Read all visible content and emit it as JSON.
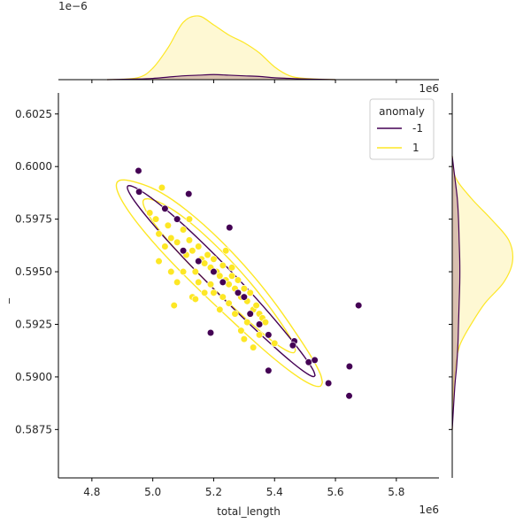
{
  "chart_data": {
    "type": "scatter",
    "subtype": "jointplot",
    "title": "",
    "xlabel": "total_length",
    "ylabel": "_",
    "x_offset_text": "1e6",
    "y_offset_text": "1e6",
    "top_marginal_offset_text": "1e−6",
    "xlim": [
      4.69,
      5.94
    ],
    "ylim": [
      0.5852,
      0.6035
    ],
    "x_ticks": [
      4.8,
      5.0,
      5.2,
      5.4,
      5.6,
      5.8
    ],
    "x_tick_labels": [
      "4.8",
      "5.0",
      "5.2",
      "5.4",
      "5.6",
      "5.8"
    ],
    "y_ticks": [
      0.5875,
      0.59,
      0.5925,
      0.595,
      0.5975,
      0.6,
      0.6025
    ],
    "y_tick_labels": [
      "0.5875",
      "0.5900",
      "0.5925",
      "0.5950",
      "0.5975",
      "0.6000",
      "0.6025"
    ],
    "grid": false,
    "legend": {
      "title": "anomaly",
      "placement": "top-right",
      "entries": [
        {
          "label": "-1",
          "color": "#440154"
        },
        {
          "label": "1",
          "color": "#fde725"
        }
      ]
    },
    "colors": {
      "anomaly_neg": "#440154",
      "anomaly_pos": "#fde725",
      "fill_neg": "#c9a8a0",
      "fill_pos": "#fdf5c0"
    },
    "series": [
      {
        "name": "-1",
        "points": [
          [
            4.953,
            0.5998
          ],
          [
            4.955,
            0.5988
          ],
          [
            5.118,
            0.5987
          ],
          [
            5.252,
            0.5971
          ],
          [
            5.04,
            0.598
          ],
          [
            5.08,
            0.5975
          ],
          [
            5.1,
            0.596
          ],
          [
            5.15,
            0.5955
          ],
          [
            5.2,
            0.595
          ],
          [
            5.23,
            0.5945
          ],
          [
            5.28,
            0.594
          ],
          [
            5.3,
            0.5938
          ],
          [
            5.32,
            0.593
          ],
          [
            5.35,
            0.5925
          ],
          [
            5.38,
            0.592
          ],
          [
            5.19,
            0.5921
          ],
          [
            5.465,
            0.5917
          ],
          [
            5.46,
            0.5915
          ],
          [
            5.38,
            0.5903
          ],
          [
            5.512,
            0.5907
          ],
          [
            5.532,
            0.5908
          ],
          [
            5.577,
            0.5897
          ],
          [
            5.646,
            0.5905
          ],
          [
            5.645,
            0.5891
          ],
          [
            5.676,
            0.5934
          ]
        ]
      },
      {
        "name": "1",
        "points": [
          [
            5.03,
            0.599
          ],
          [
            4.99,
            0.5978
          ],
          [
            5.01,
            0.5975
          ],
          [
            5.05,
            0.5972
          ],
          [
            5.02,
            0.5968
          ],
          [
            5.06,
            0.5966
          ],
          [
            5.08,
            0.5964
          ],
          [
            5.04,
            0.5962
          ],
          [
            5.1,
            0.597
          ],
          [
            5.12,
            0.5965
          ],
          [
            5.13,
            0.596
          ],
          [
            5.11,
            0.5958
          ],
          [
            5.15,
            0.5962
          ],
          [
            5.16,
            0.5956
          ],
          [
            5.17,
            0.5954
          ],
          [
            5.14,
            0.595
          ],
          [
            5.18,
            0.5958
          ],
          [
            5.19,
            0.5952
          ],
          [
            5.2,
            0.5956
          ],
          [
            5.21,
            0.595
          ],
          [
            5.22,
            0.5948
          ],
          [
            5.23,
            0.5953
          ],
          [
            5.24,
            0.5946
          ],
          [
            5.25,
            0.5944
          ],
          [
            5.26,
            0.5948
          ],
          [
            5.27,
            0.5942
          ],
          [
            5.28,
            0.5946
          ],
          [
            5.29,
            0.5938
          ],
          [
            5.3,
            0.5942
          ],
          [
            5.31,
            0.5936
          ],
          [
            5.32,
            0.594
          ],
          [
            5.33,
            0.5932
          ],
          [
            5.34,
            0.5934
          ],
          [
            5.35,
            0.593
          ],
          [
            5.36,
            0.5928
          ],
          [
            5.37,
            0.5926
          ],
          [
            5.25,
            0.5935
          ],
          [
            5.2,
            0.594
          ],
          [
            5.15,
            0.5945
          ],
          [
            5.1,
            0.595
          ],
          [
            5.07,
            0.5934
          ],
          [
            5.13,
            0.5938
          ],
          [
            5.14,
            0.5937
          ],
          [
            5.22,
            0.5932
          ],
          [
            5.27,
            0.593
          ],
          [
            5.29,
            0.5922
          ],
          [
            5.3,
            0.5918
          ],
          [
            5.35,
            0.592
          ],
          [
            5.33,
            0.5914
          ],
          [
            5.4,
            0.5916
          ],
          [
            5.02,
            0.5955
          ],
          [
            5.06,
            0.595
          ],
          [
            5.17,
            0.594
          ],
          [
            5.19,
            0.5944
          ],
          [
            5.23,
            0.5938
          ],
          [
            5.26,
            0.5952
          ],
          [
            5.12,
            0.5975
          ],
          [
            5.08,
            0.5945
          ],
          [
            5.31,
            0.5926
          ],
          [
            5.24,
            0.596
          ]
        ]
      }
    ],
    "marginal_x_density": {
      "x": [
        4.85,
        4.95,
        5.0,
        5.05,
        5.1,
        5.15,
        5.2,
        5.25,
        5.3,
        5.35,
        5.4,
        5.45,
        5.5,
        5.6
      ],
      "series_1": [
        0.0,
        0.03,
        0.18,
        0.5,
        0.9,
        1.0,
        0.86,
        0.7,
        0.58,
        0.42,
        0.2,
        0.06,
        0.02,
        0.0
      ],
      "series_neg1": [
        0.0,
        0.01,
        0.02,
        0.04,
        0.06,
        0.07,
        0.08,
        0.07,
        0.06,
        0.05,
        0.03,
        0.02,
        0.01,
        0.0
      ]
    },
    "marginal_y_density": {
      "y": [
        0.5875,
        0.5895,
        0.5905,
        0.5915,
        0.5925,
        0.5935,
        0.5945,
        0.5955,
        0.5965,
        0.5975,
        0.5985,
        0.5995,
        0.6005
      ],
      "series_1": [
        0.0,
        0.02,
        0.05,
        0.12,
        0.3,
        0.52,
        0.82,
        0.96,
        0.9,
        0.62,
        0.3,
        0.05,
        0.0
      ],
      "series_neg1": [
        0.0,
        0.04,
        0.07,
        0.09,
        0.1,
        0.11,
        0.12,
        0.12,
        0.11,
        0.1,
        0.08,
        0.04,
        0.0
      ]
    }
  }
}
